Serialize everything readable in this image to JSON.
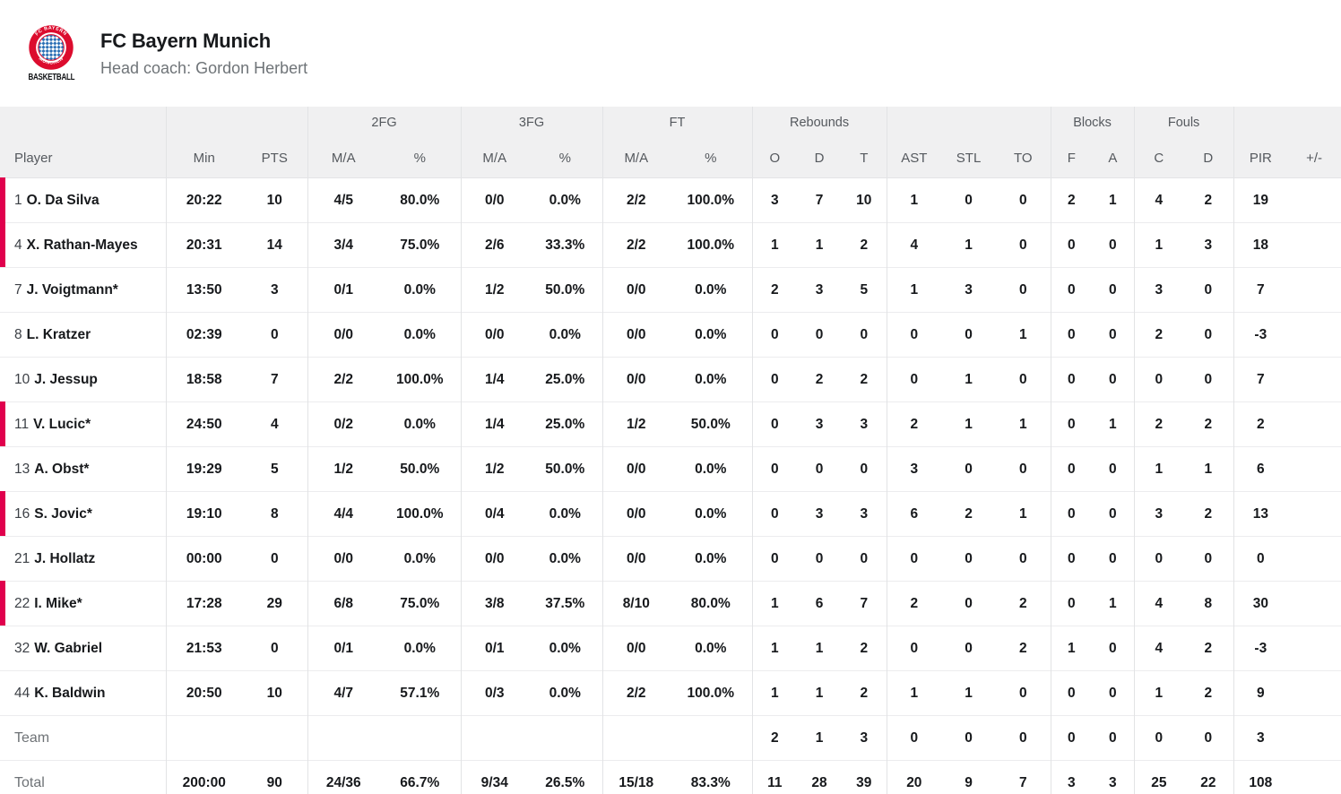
{
  "team_header": {
    "name": "FC Bayern Munich",
    "coach": "Head coach: Gordon Herbert",
    "logo": {
      "ring_top": "FC BAYERN",
      "ring_bottom": "MÜNCHEN",
      "caption": "BASKETBALL"
    }
  },
  "colors": {
    "accent_red": "#e0004d",
    "logo_red": "#dc0c2e",
    "logo_blue": "#2a6fb5",
    "header_bg": "#f0f0f1",
    "row_border": "#ececee",
    "column_border": "#e2e3e5",
    "text_dark": "#17191c",
    "text_muted": "#6e7276"
  },
  "table": {
    "groups": {
      "fg2": "2FG",
      "fg3": "3FG",
      "ft": "FT",
      "rebounds": "Rebounds",
      "blocks": "Blocks",
      "fouls": "Fouls"
    },
    "columns": [
      "Player",
      "Min",
      "PTS",
      "M/A",
      "%",
      "M/A",
      "%",
      "M/A",
      "%",
      "O",
      "D",
      "T",
      "AST",
      "STL",
      "TO",
      "F",
      "A",
      "C",
      "D",
      "PIR",
      "+/-"
    ],
    "rows": [
      {
        "number": "1",
        "name": "O. Da Silva",
        "on_court": true,
        "stats": [
          "20:22",
          "10",
          "4/5",
          "80.0%",
          "0/0",
          "0.0%",
          "2/2",
          "100.0%",
          "3",
          "7",
          "10",
          "1",
          "0",
          "0",
          "2",
          "1",
          "4",
          "2",
          "19",
          ""
        ]
      },
      {
        "number": "4",
        "name": "X. Rathan-Mayes",
        "on_court": true,
        "stats": [
          "20:31",
          "14",
          "3/4",
          "75.0%",
          "2/6",
          "33.3%",
          "2/2",
          "100.0%",
          "1",
          "1",
          "2",
          "4",
          "1",
          "0",
          "0",
          "0",
          "1",
          "3",
          "18",
          ""
        ]
      },
      {
        "number": "7",
        "name": "J. Voigtmann*",
        "on_court": false,
        "stats": [
          "13:50",
          "3",
          "0/1",
          "0.0%",
          "1/2",
          "50.0%",
          "0/0",
          "0.0%",
          "2",
          "3",
          "5",
          "1",
          "3",
          "0",
          "0",
          "0",
          "3",
          "0",
          "7",
          ""
        ]
      },
      {
        "number": "8",
        "name": "L. Kratzer",
        "on_court": false,
        "stats": [
          "02:39",
          "0",
          "0/0",
          "0.0%",
          "0/0",
          "0.0%",
          "0/0",
          "0.0%",
          "0",
          "0",
          "0",
          "0",
          "0",
          "1",
          "0",
          "0",
          "2",
          "0",
          "-3",
          ""
        ]
      },
      {
        "number": "10",
        "name": "J. Jessup",
        "on_court": false,
        "stats": [
          "18:58",
          "7",
          "2/2",
          "100.0%",
          "1/4",
          "25.0%",
          "0/0",
          "0.0%",
          "0",
          "2",
          "2",
          "0",
          "1",
          "0",
          "0",
          "0",
          "0",
          "0",
          "7",
          ""
        ]
      },
      {
        "number": "11",
        "name": "V. Lucic*",
        "on_court": true,
        "stats": [
          "24:50",
          "4",
          "0/2",
          "0.0%",
          "1/4",
          "25.0%",
          "1/2",
          "50.0%",
          "0",
          "3",
          "3",
          "2",
          "1",
          "1",
          "0",
          "1",
          "2",
          "2",
          "2",
          ""
        ]
      },
      {
        "number": "13",
        "name": "A. Obst*",
        "on_court": false,
        "stats": [
          "19:29",
          "5",
          "1/2",
          "50.0%",
          "1/2",
          "50.0%",
          "0/0",
          "0.0%",
          "0",
          "0",
          "0",
          "3",
          "0",
          "0",
          "0",
          "0",
          "1",
          "1",
          "6",
          ""
        ]
      },
      {
        "number": "16",
        "name": "S. Jovic*",
        "on_court": true,
        "stats": [
          "19:10",
          "8",
          "4/4",
          "100.0%",
          "0/4",
          "0.0%",
          "0/0",
          "0.0%",
          "0",
          "3",
          "3",
          "6",
          "2",
          "1",
          "0",
          "0",
          "3",
          "2",
          "13",
          ""
        ]
      },
      {
        "number": "21",
        "name": "J. Hollatz",
        "on_court": false,
        "stats": [
          "00:00",
          "0",
          "0/0",
          "0.0%",
          "0/0",
          "0.0%",
          "0/0",
          "0.0%",
          "0",
          "0",
          "0",
          "0",
          "0",
          "0",
          "0",
          "0",
          "0",
          "0",
          "0",
          ""
        ]
      },
      {
        "number": "22",
        "name": "I. Mike*",
        "on_court": true,
        "stats": [
          "17:28",
          "29",
          "6/8",
          "75.0%",
          "3/8",
          "37.5%",
          "8/10",
          "80.0%",
          "1",
          "6",
          "7",
          "2",
          "0",
          "2",
          "0",
          "1",
          "4",
          "8",
          "30",
          ""
        ]
      },
      {
        "number": "32",
        "name": "W. Gabriel",
        "on_court": false,
        "stats": [
          "21:53",
          "0",
          "0/1",
          "0.0%",
          "0/1",
          "0.0%",
          "0/0",
          "0.0%",
          "1",
          "1",
          "2",
          "0",
          "0",
          "2",
          "1",
          "0",
          "4",
          "2",
          "-3",
          ""
        ]
      },
      {
        "number": "44",
        "name": "K. Baldwin",
        "on_court": false,
        "stats": [
          "20:50",
          "10",
          "4/7",
          "57.1%",
          "0/3",
          "0.0%",
          "2/2",
          "100.0%",
          "1",
          "1",
          "2",
          "1",
          "1",
          "0",
          "0",
          "0",
          "1",
          "2",
          "9",
          ""
        ]
      }
    ],
    "team_row": {
      "label": "Team",
      "stats": [
        "",
        "",
        "",
        "",
        "",
        "",
        "",
        "",
        "2",
        "1",
        "3",
        "0",
        "0",
        "0",
        "0",
        "0",
        "0",
        "0",
        "3",
        ""
      ]
    },
    "total_row": {
      "label": "Total",
      "stats": [
        "200:00",
        "90",
        "24/36",
        "66.7%",
        "9/34",
        "26.5%",
        "15/18",
        "83.3%",
        "11",
        "28",
        "39",
        "20",
        "9",
        "7",
        "3",
        "3",
        "25",
        "22",
        "108",
        ""
      ]
    }
  }
}
